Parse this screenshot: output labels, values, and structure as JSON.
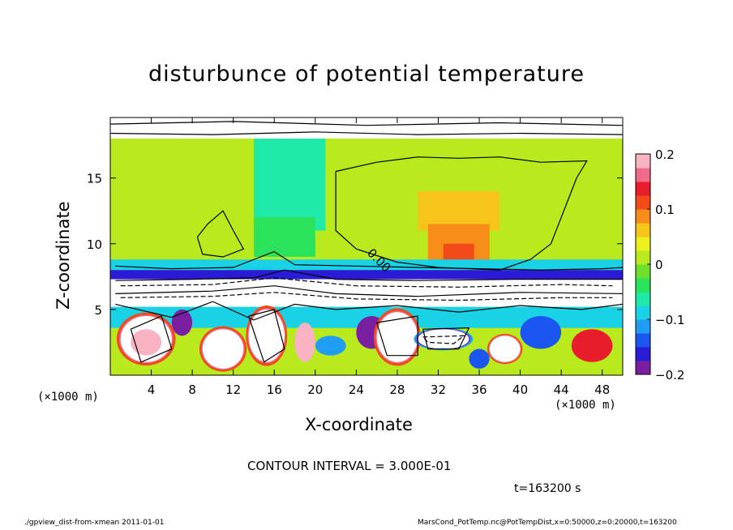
{
  "chart_data": {
    "type": "heatmap",
    "title": "disturbunce of potential temperature",
    "xlabel": "X-coordinate",
    "ylabel": "Z-coordinate",
    "x_unit_label": "(×1000 m)",
    "y_unit_label": "(×1000 m)",
    "xlim": [
      0,
      50
    ],
    "ylim": [
      0,
      19.6
    ],
    "x_ticks": [
      4,
      8,
      12,
      16,
      20,
      24,
      28,
      32,
      36,
      40,
      44,
      48
    ],
    "y_ticks": [
      5,
      10,
      15
    ],
    "colorbar": {
      "range": [
        -0.2,
        0.2
      ],
      "ticks": [
        {
          "value": 0.2,
          "label": "0.2"
        },
        {
          "value": 0.1,
          "label": "0.1"
        },
        {
          "value": 0,
          "label": "0"
        },
        {
          "value": -0.1,
          "label": "−0.1"
        },
        {
          "value": -0.2,
          "label": "−0.2"
        }
      ],
      "colors": [
        "#7a1fa2",
        "#2a1bd6",
        "#1c56f0",
        "#1f9cf3",
        "#19d2e6",
        "#1ee9a6",
        "#2be35a",
        "#6ee02b",
        "#b8ea1e",
        "#eef01c",
        "#f7c51a",
        "#f78c19",
        "#f34a1a",
        "#e81c2a",
        "#f26a8a",
        "#f9b3c3"
      ],
      "above_color": "#ffffff",
      "below_color": "#ffffff"
    },
    "contour_interval_text": "CONTOUR INTERVAL = 3.000E-01",
    "contour_label": "0.00",
    "time_label": "t=163200 s",
    "field_regions": [
      {
        "x": [
          0,
          50
        ],
        "z": [
          0,
          19.6
        ],
        "value": 0.0
      },
      {
        "x": [
          0,
          50
        ],
        "z": [
          11,
          18
        ],
        "value": 0.02
      },
      {
        "x": [
          14,
          21
        ],
        "z": [
          11,
          18
        ],
        "value": -0.06
      },
      {
        "x": [
          14,
          20
        ],
        "z": [
          9,
          12
        ],
        "value": -0.05
      },
      {
        "x": [
          30,
          38
        ],
        "z": [
          11,
          14
        ],
        "value": 0.06
      },
      {
        "x": [
          31,
          37
        ],
        "z": [
          8.5,
          11.5
        ],
        "value": 0.09
      },
      {
        "x": [
          32.5,
          35.5
        ],
        "z": [
          8.5,
          10
        ],
        "value": 0.12
      },
      {
        "x": [
          0,
          50
        ],
        "z": [
          8,
          8.8
        ],
        "value": -0.09
      },
      {
        "x": [
          0,
          50
        ],
        "z": [
          7.3,
          8
        ],
        "value": -0.16
      },
      {
        "x": [
          0,
          50
        ],
        "z": [
          5.2,
          7.3
        ],
        "value": -0.3
      },
      {
        "x": [
          0,
          50
        ],
        "z": [
          3.6,
          5.2
        ],
        "value": -0.1
      },
      {
        "x": [
          0,
          50
        ],
        "z": [
          18,
          19.6
        ],
        "value": 0.3
      }
    ],
    "cells": [
      {
        "x": [
          1,
          6
        ],
        "z": [
          1,
          4.5
        ],
        "value": 0.3
      },
      {
        "x": [
          2,
          5
        ],
        "z": [
          1.5,
          3.5
        ],
        "value": 0.18
      },
      {
        "x": [
          9,
          13
        ],
        "z": [
          0.5,
          3.5
        ],
        "value": 0.25
      },
      {
        "x": [
          13.5,
          17
        ],
        "z": [
          1,
          5
        ],
        "value": 0.3
      },
      {
        "x": [
          18,
          20
        ],
        "z": [
          1,
          4
        ],
        "value": 0.2
      },
      {
        "x": [
          24,
          27
        ],
        "z": [
          2,
          4.5
        ],
        "value": -0.2
      },
      {
        "x": [
          26,
          30
        ],
        "z": [
          1,
          4.8
        ],
        "value": 0.3
      },
      {
        "x": [
          30,
          35
        ],
        "z": [
          2,
          3.5
        ],
        "value": -0.3
      },
      {
        "x": [
          37,
          40
        ],
        "z": [
          1,
          3
        ],
        "value": 0.22
      },
      {
        "x": [
          40,
          44
        ],
        "z": [
          2,
          4.5
        ],
        "value": -0.15
      },
      {
        "x": [
          45,
          49
        ],
        "z": [
          1,
          3.5
        ],
        "value": 0.15
      },
      {
        "x": [
          6,
          8
        ],
        "z": [
          3,
          5
        ],
        "value": -0.2
      },
      {
        "x": [
          20,
          23
        ],
        "z": [
          1.5,
          3
        ],
        "value": -0.12
      },
      {
        "x": [
          35,
          37
        ],
        "z": [
          0.5,
          2
        ],
        "value": -0.14
      }
    ],
    "contours": [
      [
        [
          22,
          15.5
        ],
        [
          26,
          16.2
        ],
        [
          30,
          16.6
        ],
        [
          34,
          16.5
        ],
        [
          38,
          16.6
        ],
        [
          42,
          16.2
        ],
        [
          46.5,
          16.3
        ],
        [
          45.5,
          15
        ],
        [
          44.5,
          13
        ],
        [
          43,
          10
        ],
        [
          41,
          8.8
        ],
        [
          38,
          8
        ],
        [
          32,
          8.2
        ],
        [
          28,
          8.6
        ],
        [
          24,
          9.6
        ],
        [
          22,
          11
        ],
        [
          22,
          15.5
        ]
      ],
      [
        [
          8.5,
          10.5
        ],
        [
          9.5,
          11.5
        ],
        [
          11,
          12.5
        ],
        [
          12,
          11
        ],
        [
          13,
          9.6
        ],
        [
          11,
          9
        ],
        [
          9,
          9.2
        ],
        [
          8.5,
          10.5
        ]
      ],
      [
        [
          0.5,
          8.3
        ],
        [
          6,
          8.1
        ],
        [
          12,
          8.2
        ],
        [
          16,
          9.4
        ],
        [
          18,
          8.4
        ],
        [
          24,
          8.3
        ],
        [
          30,
          8.2
        ],
        [
          36,
          8.1
        ],
        [
          42,
          8
        ],
        [
          48,
          8.1
        ],
        [
          50,
          8.2
        ]
      ],
      [
        [
          0.5,
          7.2
        ],
        [
          8,
          7.3
        ],
        [
          14,
          7.4
        ],
        [
          17,
          8
        ],
        [
          22,
          7.3
        ],
        [
          30,
          7.2
        ],
        [
          40,
          7.3
        ],
        [
          50,
          7.3
        ]
      ],
      [
        [
          0.5,
          6.2
        ],
        [
          10,
          6.4
        ],
        [
          16,
          6.8
        ],
        [
          22,
          6.2
        ],
        [
          30,
          6
        ],
        [
          40,
          6.3
        ],
        [
          50,
          6.2
        ]
      ],
      [
        [
          0.5,
          5.4
        ],
        [
          6,
          4.4
        ],
        [
          10,
          5.6
        ],
        [
          14,
          4.2
        ],
        [
          18,
          5.4
        ],
        [
          22,
          5
        ],
        [
          28,
          5.3
        ],
        [
          34,
          4.8
        ],
        [
          40,
          5.3
        ],
        [
          46,
          5
        ],
        [
          50,
          5.4
        ]
      ],
      [
        [
          2,
          3.5
        ],
        [
          5,
          4.5
        ],
        [
          6,
          2
        ],
        [
          3,
          1
        ],
        [
          2,
          3.5
        ]
      ],
      [
        [
          13.5,
          4.5
        ],
        [
          16,
          5
        ],
        [
          17,
          2
        ],
        [
          15,
          1
        ],
        [
          13.5,
          4.5
        ]
      ],
      [
        [
          26,
          4
        ],
        [
          30,
          4.5
        ],
        [
          30,
          1.5
        ],
        [
          27,
          1.5
        ],
        [
          26,
          4
        ]
      ],
      [
        [
          30.5,
          3.5
        ],
        [
          35,
          3.6
        ],
        [
          34,
          2
        ],
        [
          31,
          2
        ],
        [
          30.5,
          3.5
        ]
      ],
      [
        [
          0,
          18.4
        ],
        [
          10,
          18.3
        ],
        [
          20,
          18.5
        ],
        [
          30,
          18.3
        ],
        [
          40,
          18.4
        ],
        [
          50,
          18.3
        ]
      ],
      [
        [
          0,
          19.1
        ],
        [
          12,
          19.3
        ],
        [
          25,
          19
        ],
        [
          38,
          19.2
        ],
        [
          50,
          19
        ]
      ]
    ],
    "dashed_contours": [
      [
        [
          1,
          6.8
        ],
        [
          10,
          6.9
        ],
        [
          16,
          7.4
        ],
        [
          24,
          6.8
        ],
        [
          34,
          6.7
        ],
        [
          44,
          6.9
        ],
        [
          49,
          6.8
        ]
      ],
      [
        [
          1,
          5.9
        ],
        [
          10,
          6
        ],
        [
          16,
          6.3
        ],
        [
          24,
          5.8
        ],
        [
          34,
          5.7
        ],
        [
          44,
          5.9
        ],
        [
          49,
          5.9
        ]
      ],
      [
        [
          30.5,
          2.9
        ],
        [
          34.5,
          3
        ],
        [
          33.5,
          2.4
        ],
        [
          31,
          2.5
        ],
        [
          30.5,
          2.9
        ]
      ]
    ]
  },
  "footer": {
    "left": "./gpview_dist-from-xmean  2011-01-01",
    "right": "MarsCond_PotTemp.nc@PotTempDist,x=0:50000,z=0:20000,t=163200"
  }
}
